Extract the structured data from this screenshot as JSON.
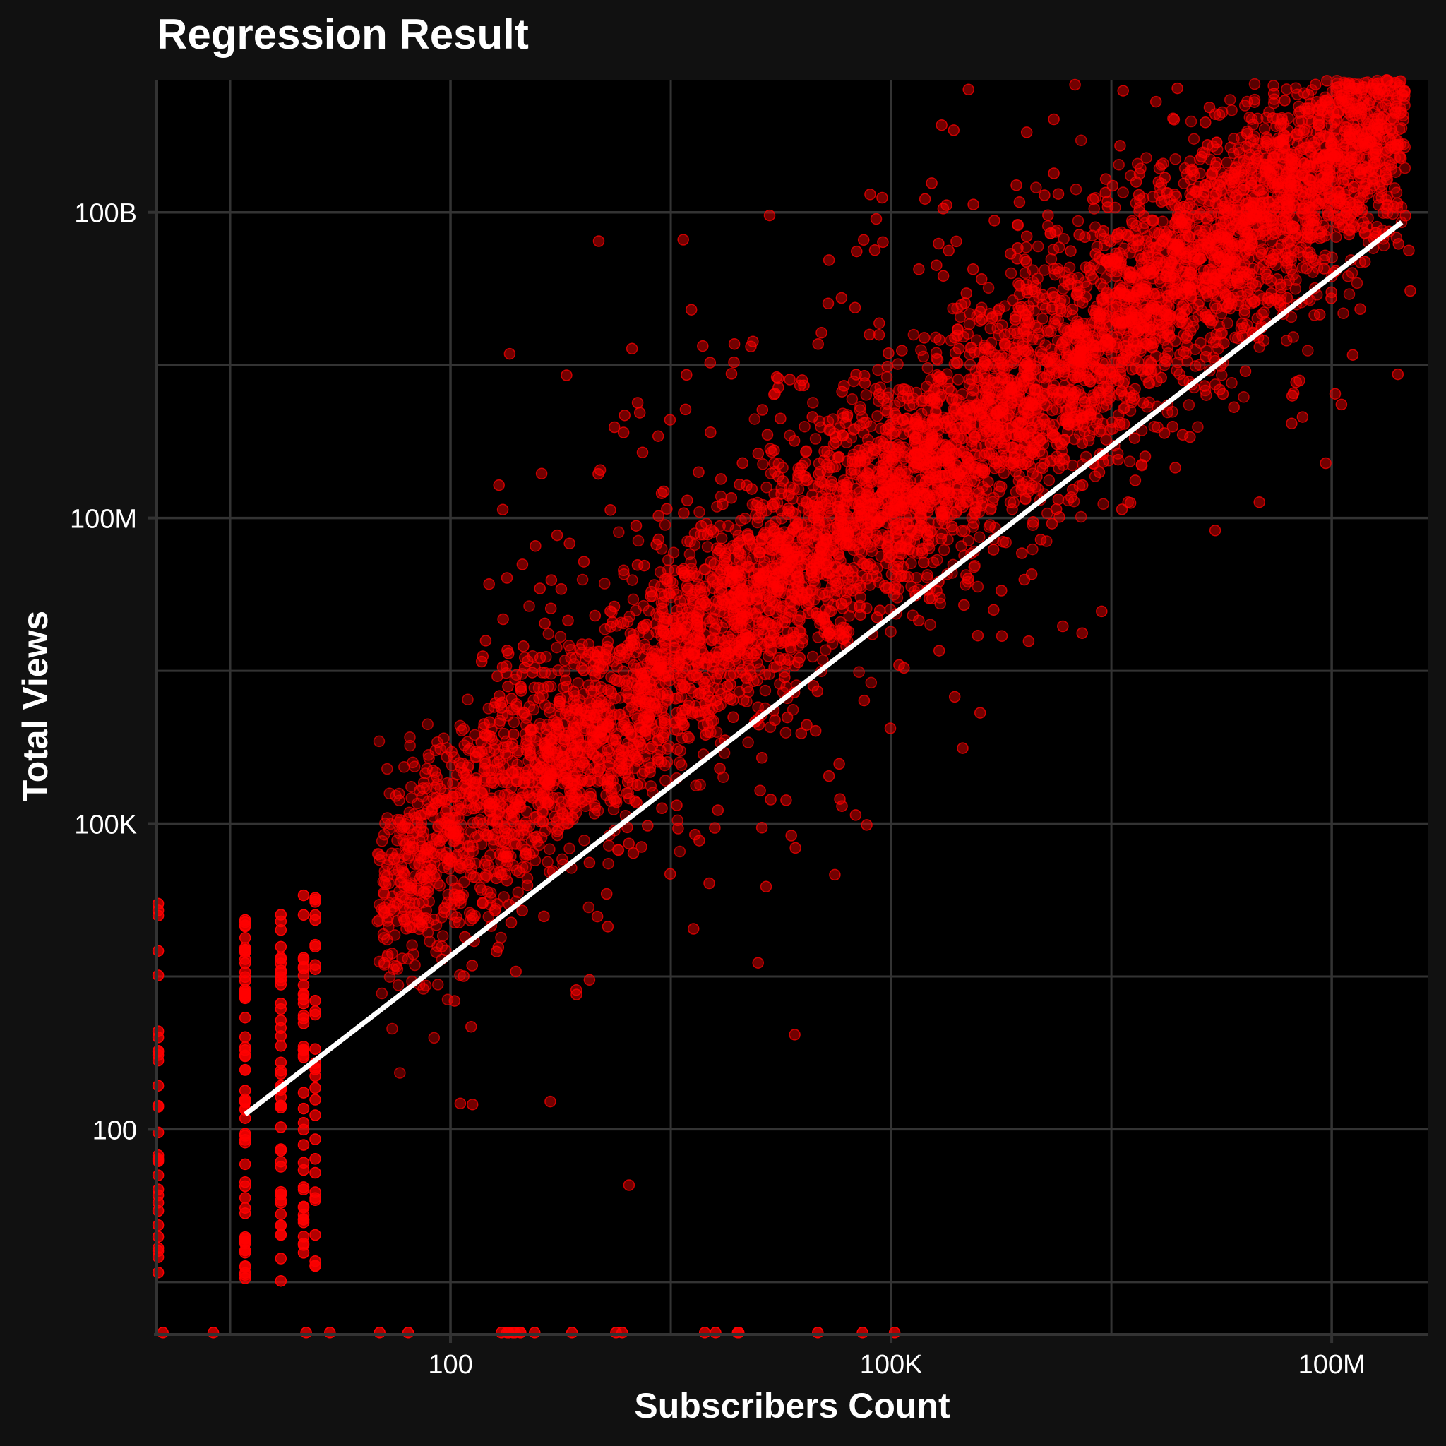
{
  "chart_data": {
    "type": "scatter",
    "title": "Regression Result",
    "xlabel": "Subscribers Count",
    "ylabel": "Total Views",
    "x_scale": "log10",
    "y_scale": "log10",
    "xlim": [
      1,
      450000000
    ],
    "ylim": [
      1,
      2000000000000
    ],
    "x_ticks": [
      {
        "value": 100,
        "label": "100"
      },
      {
        "value": 100000,
        "label": "100K"
      },
      {
        "value": 100000000,
        "label": "100M"
      }
    ],
    "y_ticks": [
      {
        "value": 100,
        "label": "100"
      },
      {
        "value": 100000,
        "label": "100K"
      },
      {
        "value": 100000000,
        "label": "100M"
      },
      {
        "value": 100000000000,
        "label": "100B"
      }
    ],
    "grid": true,
    "legend": "none",
    "colors": {
      "background": "#111111",
      "panel": "#000000",
      "grid": "#333333",
      "point": "#ff0000",
      "regression_line": "#ffffff"
    },
    "regression_line": {
      "x": [
        4,
        300000000
      ],
      "y": [
        140,
        80000000000
      ]
    },
    "points_summary": {
      "count": "dense cloud (thousands of channels)",
      "relationship": "positive, approximately linear on log-log scale"
    }
  }
}
